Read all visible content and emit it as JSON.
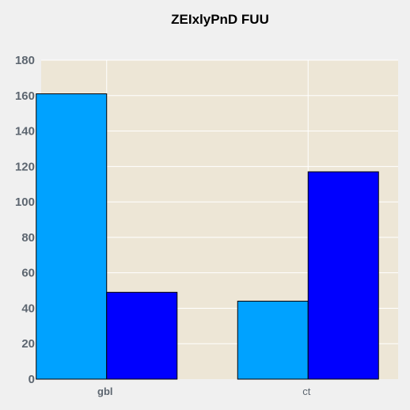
{
  "chart_data": {
    "type": "bar",
    "title": "ZEIxlyPnD FUU",
    "xlabel": "",
    "ylabel": "",
    "categories": [
      "gbl",
      "ct"
    ],
    "series": [
      {
        "values": [
          161,
          44
        ]
      },
      {
        "values": [
          49,
          117
        ]
      }
    ],
    "ylim": [
      0,
      180
    ],
    "yticks": [
      0,
      20,
      40,
      60,
      80,
      100,
      120,
      140,
      160,
      180
    ],
    "grid": true,
    "legend": "none",
    "colors": {
      "plot_background": "#ede6d6",
      "page_background": "#f0f0f0",
      "grid": "#ffffff",
      "bar_edge": "#000000",
      "series": [
        "#00a2ff",
        "#0000ff"
      ],
      "tick_text": "#5d6670"
    }
  }
}
